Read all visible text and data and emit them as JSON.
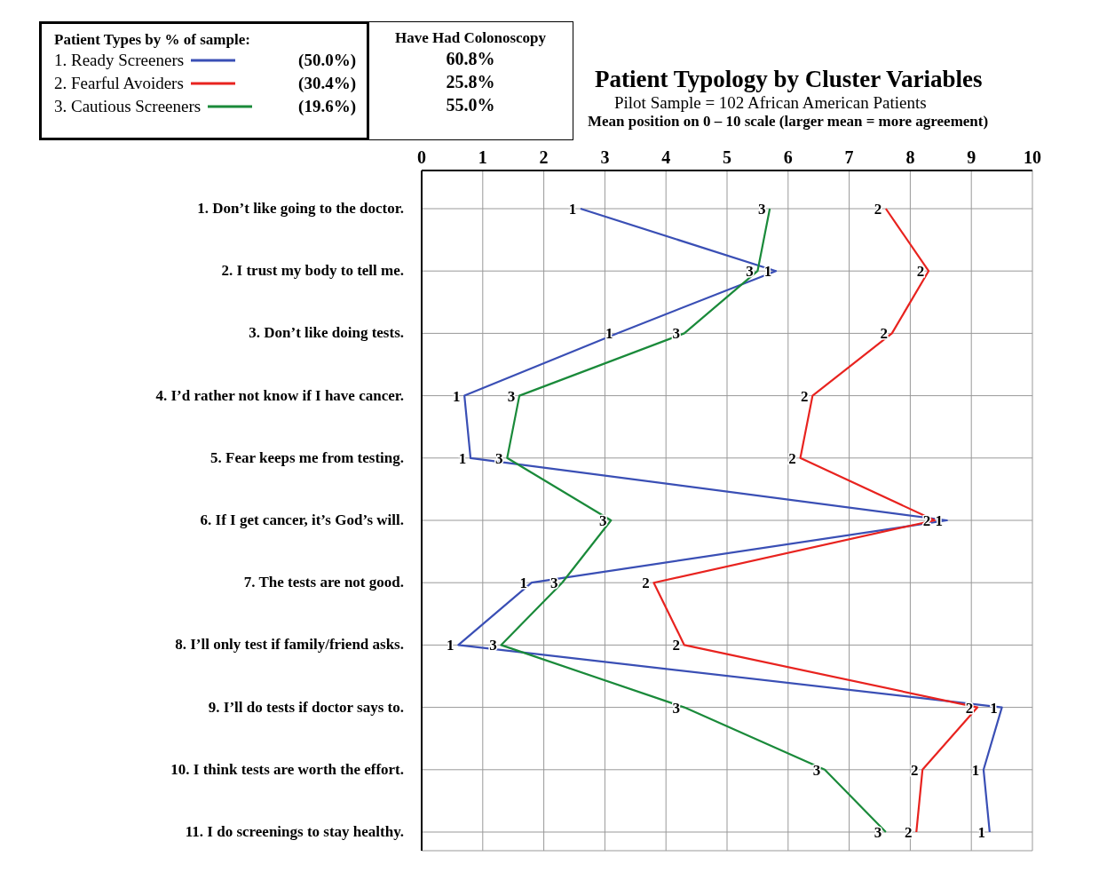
{
  "chart_data": {
    "type": "line",
    "orientation": "horizontal",
    "title": "Patient Typology by Cluster Variables",
    "subtitle": "Pilot Sample = 102 African American Patients",
    "xlabel": "Mean position on 0 – 10 scale (larger mean = more agreement)",
    "legend_title": "Patient Types by % of sample:",
    "legend": "top left",
    "grid": true,
    "marker": "none",
    "categories": [
      "1.  Don’t like going to the doctor.",
      "2.  I trust my body to tell me.",
      "3.  Don’t like doing tests.",
      "4.  I’d rather not know if I have cancer.",
      "5.  Fear keeps me from testing.",
      "6.  If I get cancer, it’s God’s will.",
      "7.  The tests are not good.",
      "8.  I’ll only test if family/friend asks.",
      "9.  I’ll do tests if doctor says to.",
      "10.  I think tests are worth the effort.",
      "11.  I do screenings to stay healthy."
    ],
    "xlim": [
      0,
      10
    ],
    "xticks": [
      0,
      1,
      2,
      3,
      4,
      5,
      6,
      7,
      8,
      9,
      10
    ],
    "series": [
      {
        "name": "1. Ready Screeners",
        "color": "#3a4fb5",
        "values": [
          2.6,
          5.8,
          3.2,
          0.7,
          0.8,
          8.6,
          1.8,
          0.6,
          9.5,
          9.2,
          9.3
        ]
      },
      {
        "name": "2. Fearful Avoiders",
        "color": "#e8231f",
        "values": [
          7.6,
          8.3,
          7.7,
          6.4,
          6.2,
          8.4,
          3.8,
          4.3,
          9.1,
          8.2,
          8.1
        ]
      },
      {
        "name": "3. Cautious Screeners",
        "color": "#1a8a3a",
        "values": [
          5.7,
          5.5,
          4.3,
          1.6,
          1.4,
          3.1,
          2.3,
          1.3,
          4.3,
          6.6,
          7.6
        ]
      }
    ],
    "annotations": [
      "(50.0%)",
      "(30.4%)",
      "(19.6%)",
      "Have Had Colonoscopy",
      "60.8%",
      "25.8%",
      "55.0%",
      {
        "text": "1",
        "x": 2.6,
        "y": "1.  Don’t like going to the doctor."
      },
      {
        "text": "1",
        "x": 5.8,
        "y": "2.  I trust my body to tell me."
      },
      {
        "text": "1",
        "x": 3.2,
        "y": "3.  Don’t like doing tests."
      },
      {
        "text": "1",
        "x": 0.7,
        "y": "4.  I’d rather not know if I have cancer."
      },
      {
        "text": "1",
        "x": 0.8,
        "y": "5.  Fear keeps me from testing."
      },
      {
        "text": "1",
        "x": 8.6,
        "y": "6.  If I get cancer, it’s God’s will."
      },
      {
        "text": "1",
        "x": 1.8,
        "y": "7.  The tests are not good."
      },
      {
        "text": "1",
        "x": 0.6,
        "y": "8.  I’ll only test if family/friend asks."
      },
      {
        "text": "1",
        "x": 9.5,
        "y": "9.  I’ll do tests if doctor says to."
      },
      {
        "text": "1",
        "x": 9.2,
        "y": "10.  I think tests are worth the effort."
      },
      {
        "text": "1",
        "x": 9.3,
        "y": "11.  I do screenings to stay healthy."
      },
      {
        "text": "2",
        "x": 7.6,
        "y": "1.  Don’t like going to the doctor."
      },
      {
        "text": "2",
        "x": 8.3,
        "y": "2.  I trust my body to tell me."
      },
      {
        "text": "2",
        "x": 7.7,
        "y": "3.  Don’t like doing tests."
      },
      {
        "text": "2",
        "x": 6.4,
        "y": "4.  I’d rather not know if I have cancer."
      },
      {
        "text": "2",
        "x": 6.2,
        "y": "5.  Fear keeps me from testing."
      },
      {
        "text": "2",
        "x": 8.4,
        "y": "6.  If I get cancer, it’s God’s will."
      },
      {
        "text": "2",
        "x": 3.8,
        "y": "7.  The tests are not good."
      },
      {
        "text": "2",
        "x": 4.3,
        "y": "8.  I’ll only test if family/friend asks."
      },
      {
        "text": "2",
        "x": 9.1,
        "y": "9.  I’ll do tests if doctor says to."
      },
      {
        "text": "2",
        "x": 8.2,
        "y": "10.  I think tests are worth the effort."
      },
      {
        "text": "2",
        "x": 8.1,
        "y": "11.  I do screenings to stay healthy."
      },
      {
        "text": "3",
        "x": 5.7,
        "y": "1.  Don’t like going to the doctor."
      },
      {
        "text": "3",
        "x": 5.5,
        "y": "2.  I trust my body to tell me."
      },
      {
        "text": "3",
        "x": 4.3,
        "y": "3.  Don’t like doing tests."
      },
      {
        "text": "3",
        "x": 1.6,
        "y": "4.  I’d rather not know if I have cancer."
      },
      {
        "text": "3",
        "x": 1.4,
        "y": "5.  Fear keeps me from testing."
      },
      {
        "text": "3",
        "x": 3.1,
        "y": "6.  If I get cancer, it’s God’s will."
      },
      {
        "text": "3",
        "x": 2.3,
        "y": "7.  The tests are not good."
      },
      {
        "text": "3",
        "x": 1.3,
        "y": "8.  I’ll only test if family/friend asks."
      },
      {
        "text": "3",
        "x": 4.3,
        "y": "9.  I’ll do tests if doctor says to."
      },
      {
        "text": "3",
        "x": 6.6,
        "y": "10.  I think tests are worth the effort."
      },
      {
        "text": "3",
        "x": 7.6,
        "y": "11.  I do screenings to stay healthy."
      }
    ]
  }
}
